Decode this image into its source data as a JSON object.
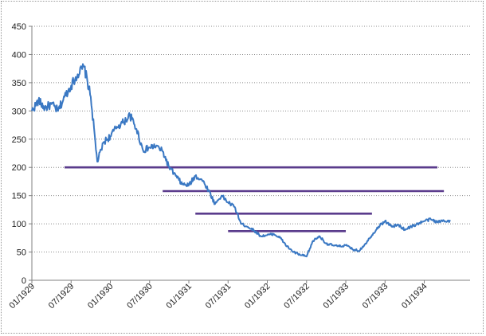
{
  "chart_data": {
    "type": "line",
    "title": "",
    "xlabel": "",
    "ylabel": "",
    "ylim": [
      0,
      450
    ],
    "y_ticks": [
      "0",
      "50",
      "100",
      "150",
      "200",
      "250",
      "300",
      "350",
      "400",
      "450"
    ],
    "x_ticks": [
      "01/1929",
      "07/1929",
      "01/1930",
      "07/1930",
      "01/1931",
      "07/1931",
      "01/1932",
      "07/1932",
      "01/1933",
      "07/1933",
      "01/1934"
    ],
    "grid": "horizontal dotted",
    "legend": "none",
    "series": [
      {
        "color": "#3a78c3",
        "points": [
          [
            "1929-01",
            300
          ],
          [
            "1929-02",
            318
          ],
          [
            "1929-03",
            305
          ],
          [
            "1929-04",
            312
          ],
          [
            "1929-05",
            300
          ],
          [
            "1929-06",
            325
          ],
          [
            "1929-07",
            345
          ],
          [
            "1929-08",
            365
          ],
          [
            "1929-09",
            378
          ],
          [
            "1929-10",
            325
          ],
          [
            "1929-11",
            210
          ],
          [
            "1929-12",
            245
          ],
          [
            "1930-01",
            255
          ],
          [
            "1930-02",
            272
          ],
          [
            "1930-03",
            280
          ],
          [
            "1930-04",
            292
          ],
          [
            "1930-05",
            268
          ],
          [
            "1930-06",
            230
          ],
          [
            "1930-07",
            235
          ],
          [
            "1930-08",
            238
          ],
          [
            "1930-09",
            228
          ],
          [
            "1930-10",
            200
          ],
          [
            "1930-11",
            185
          ],
          [
            "1930-12",
            170
          ],
          [
            "1931-01",
            168
          ],
          [
            "1931-02",
            185
          ],
          [
            "1931-03",
            178
          ],
          [
            "1931-04",
            160
          ],
          [
            "1931-05",
            135
          ],
          [
            "1931-06",
            150
          ],
          [
            "1931-07",
            138
          ],
          [
            "1931-08",
            130
          ],
          [
            "1931-09",
            100
          ],
          [
            "1931-10",
            95
          ],
          [
            "1931-11",
            88
          ],
          [
            "1931-12",
            78
          ],
          [
            "1932-01",
            80
          ],
          [
            "1932-02",
            82
          ],
          [
            "1932-03",
            75
          ],
          [
            "1932-04",
            60
          ],
          [
            "1932-05",
            50
          ],
          [
            "1932-06",
            45
          ],
          [
            "1932-07",
            42
          ],
          [
            "1932-08",
            70
          ],
          [
            "1932-09",
            78
          ],
          [
            "1932-10",
            65
          ],
          [
            "1932-11",
            62
          ],
          [
            "1932-12",
            60
          ],
          [
            "1933-01",
            62
          ],
          [
            "1933-02",
            55
          ],
          [
            "1933-03",
            52
          ],
          [
            "1933-04",
            65
          ],
          [
            "1933-05",
            80
          ],
          [
            "1933-06",
            95
          ],
          [
            "1933-07",
            105
          ],
          [
            "1933-08",
            95
          ],
          [
            "1933-09",
            98
          ],
          [
            "1933-10",
            90
          ],
          [
            "1933-11",
            95
          ],
          [
            "1933-12",
            100
          ],
          [
            "1934-01",
            105
          ],
          [
            "1934-02",
            108
          ],
          [
            "1934-03",
            103
          ],
          [
            "1934-04",
            106
          ],
          [
            "1934-05",
            105
          ]
        ]
      }
    ],
    "reference_lines": [
      {
        "y": 200,
        "x_start": "1929-06",
        "x_end": "1934-03",
        "color": "#5a3b8c"
      },
      {
        "y": 158,
        "x_start": "1930-09",
        "x_end": "1934-04",
        "color": "#5a3b8c"
      },
      {
        "y": 118,
        "x_start": "1931-02",
        "x_end": "1933-05",
        "color": "#5a3b8c"
      },
      {
        "y": 87,
        "x_start": "1931-07",
        "x_end": "1933-01",
        "color": "#5a3b8c"
      }
    ]
  }
}
